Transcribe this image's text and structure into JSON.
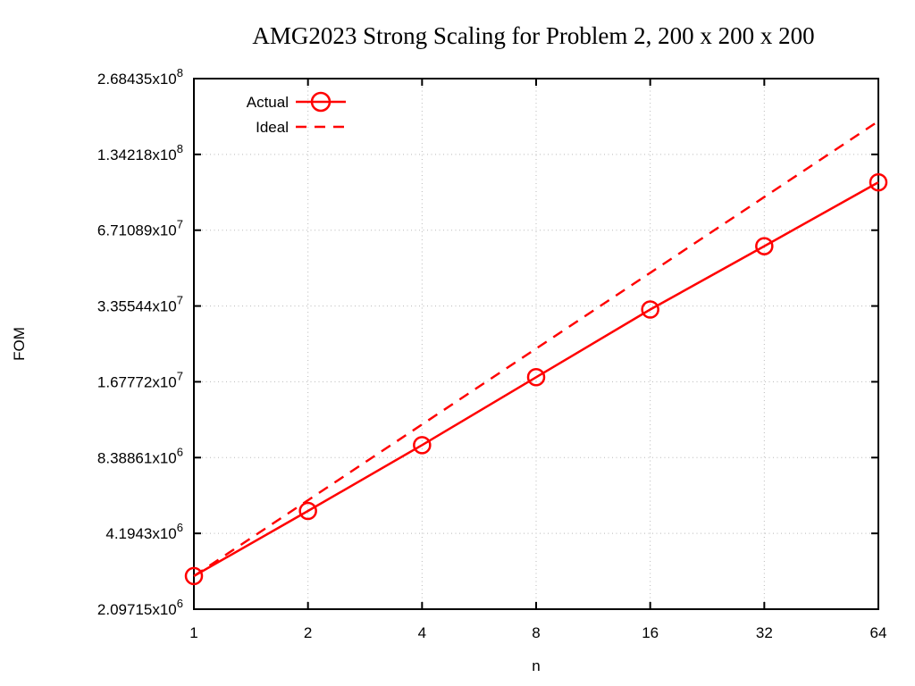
{
  "chart_data": {
    "type": "line",
    "title": "AMG2023 Strong Scaling for Problem 2, 200 x 200 x 200",
    "xlabel": "n",
    "ylabel": "FOM",
    "x_scale": "log2",
    "y_scale": "log2",
    "xlim": [
      1,
      64
    ],
    "ylim": [
      2097152,
      268435456
    ],
    "grid": true,
    "legend_position": "top-left",
    "x_ticks": [
      {
        "label": "1",
        "value": 1
      },
      {
        "label": "2",
        "value": 2
      },
      {
        "label": "4",
        "value": 4
      },
      {
        "label": "8",
        "value": 8
      },
      {
        "label": "16",
        "value": 16
      },
      {
        "label": "32",
        "value": 32
      },
      {
        "label": "64",
        "value": 64
      }
    ],
    "y_ticks": [
      {
        "mantissa": "2.09715x10",
        "exponent": "6",
        "value": 2097152
      },
      {
        "mantissa": "4.1943x10",
        "exponent": "6",
        "value": 4194304
      },
      {
        "mantissa": "8.38861x10",
        "exponent": "6",
        "value": 8388608
      },
      {
        "mantissa": "1.67772x10",
        "exponent": "7",
        "value": 16777216
      },
      {
        "mantissa": "3.35544x10",
        "exponent": "7",
        "value": 33554432
      },
      {
        "mantissa": "6.71089x10",
        "exponent": "7",
        "value": 67108864
      },
      {
        "mantissa": "1.34218x10",
        "exponent": "8",
        "value": 134217728
      },
      {
        "mantissa": "2.68435x10",
        "exponent": "8",
        "value": 268435456
      }
    ],
    "series": [
      {
        "name": "Actual",
        "color": "#ff0000",
        "line": "solid",
        "marker": "open-circle",
        "x": [
          1,
          2,
          4,
          8,
          16,
          32,
          64
        ],
        "y": [
          2840000,
          5150000,
          9400000,
          17500000,
          32500000,
          58000000,
          104000000
        ]
      },
      {
        "name": "Ideal",
        "color": "#ff0000",
        "line": "dashed",
        "marker": "none",
        "x": [
          1,
          2,
          4,
          8,
          16,
          32,
          64
        ],
        "y": [
          2840000,
          5680000,
          11360000,
          22720000,
          45440000,
          90880000,
          181760000
        ]
      }
    ]
  },
  "colors": {
    "accent": "#ff0000",
    "grid": "#b8b8b8",
    "axis": "#000000",
    "text": "#000000"
  }
}
